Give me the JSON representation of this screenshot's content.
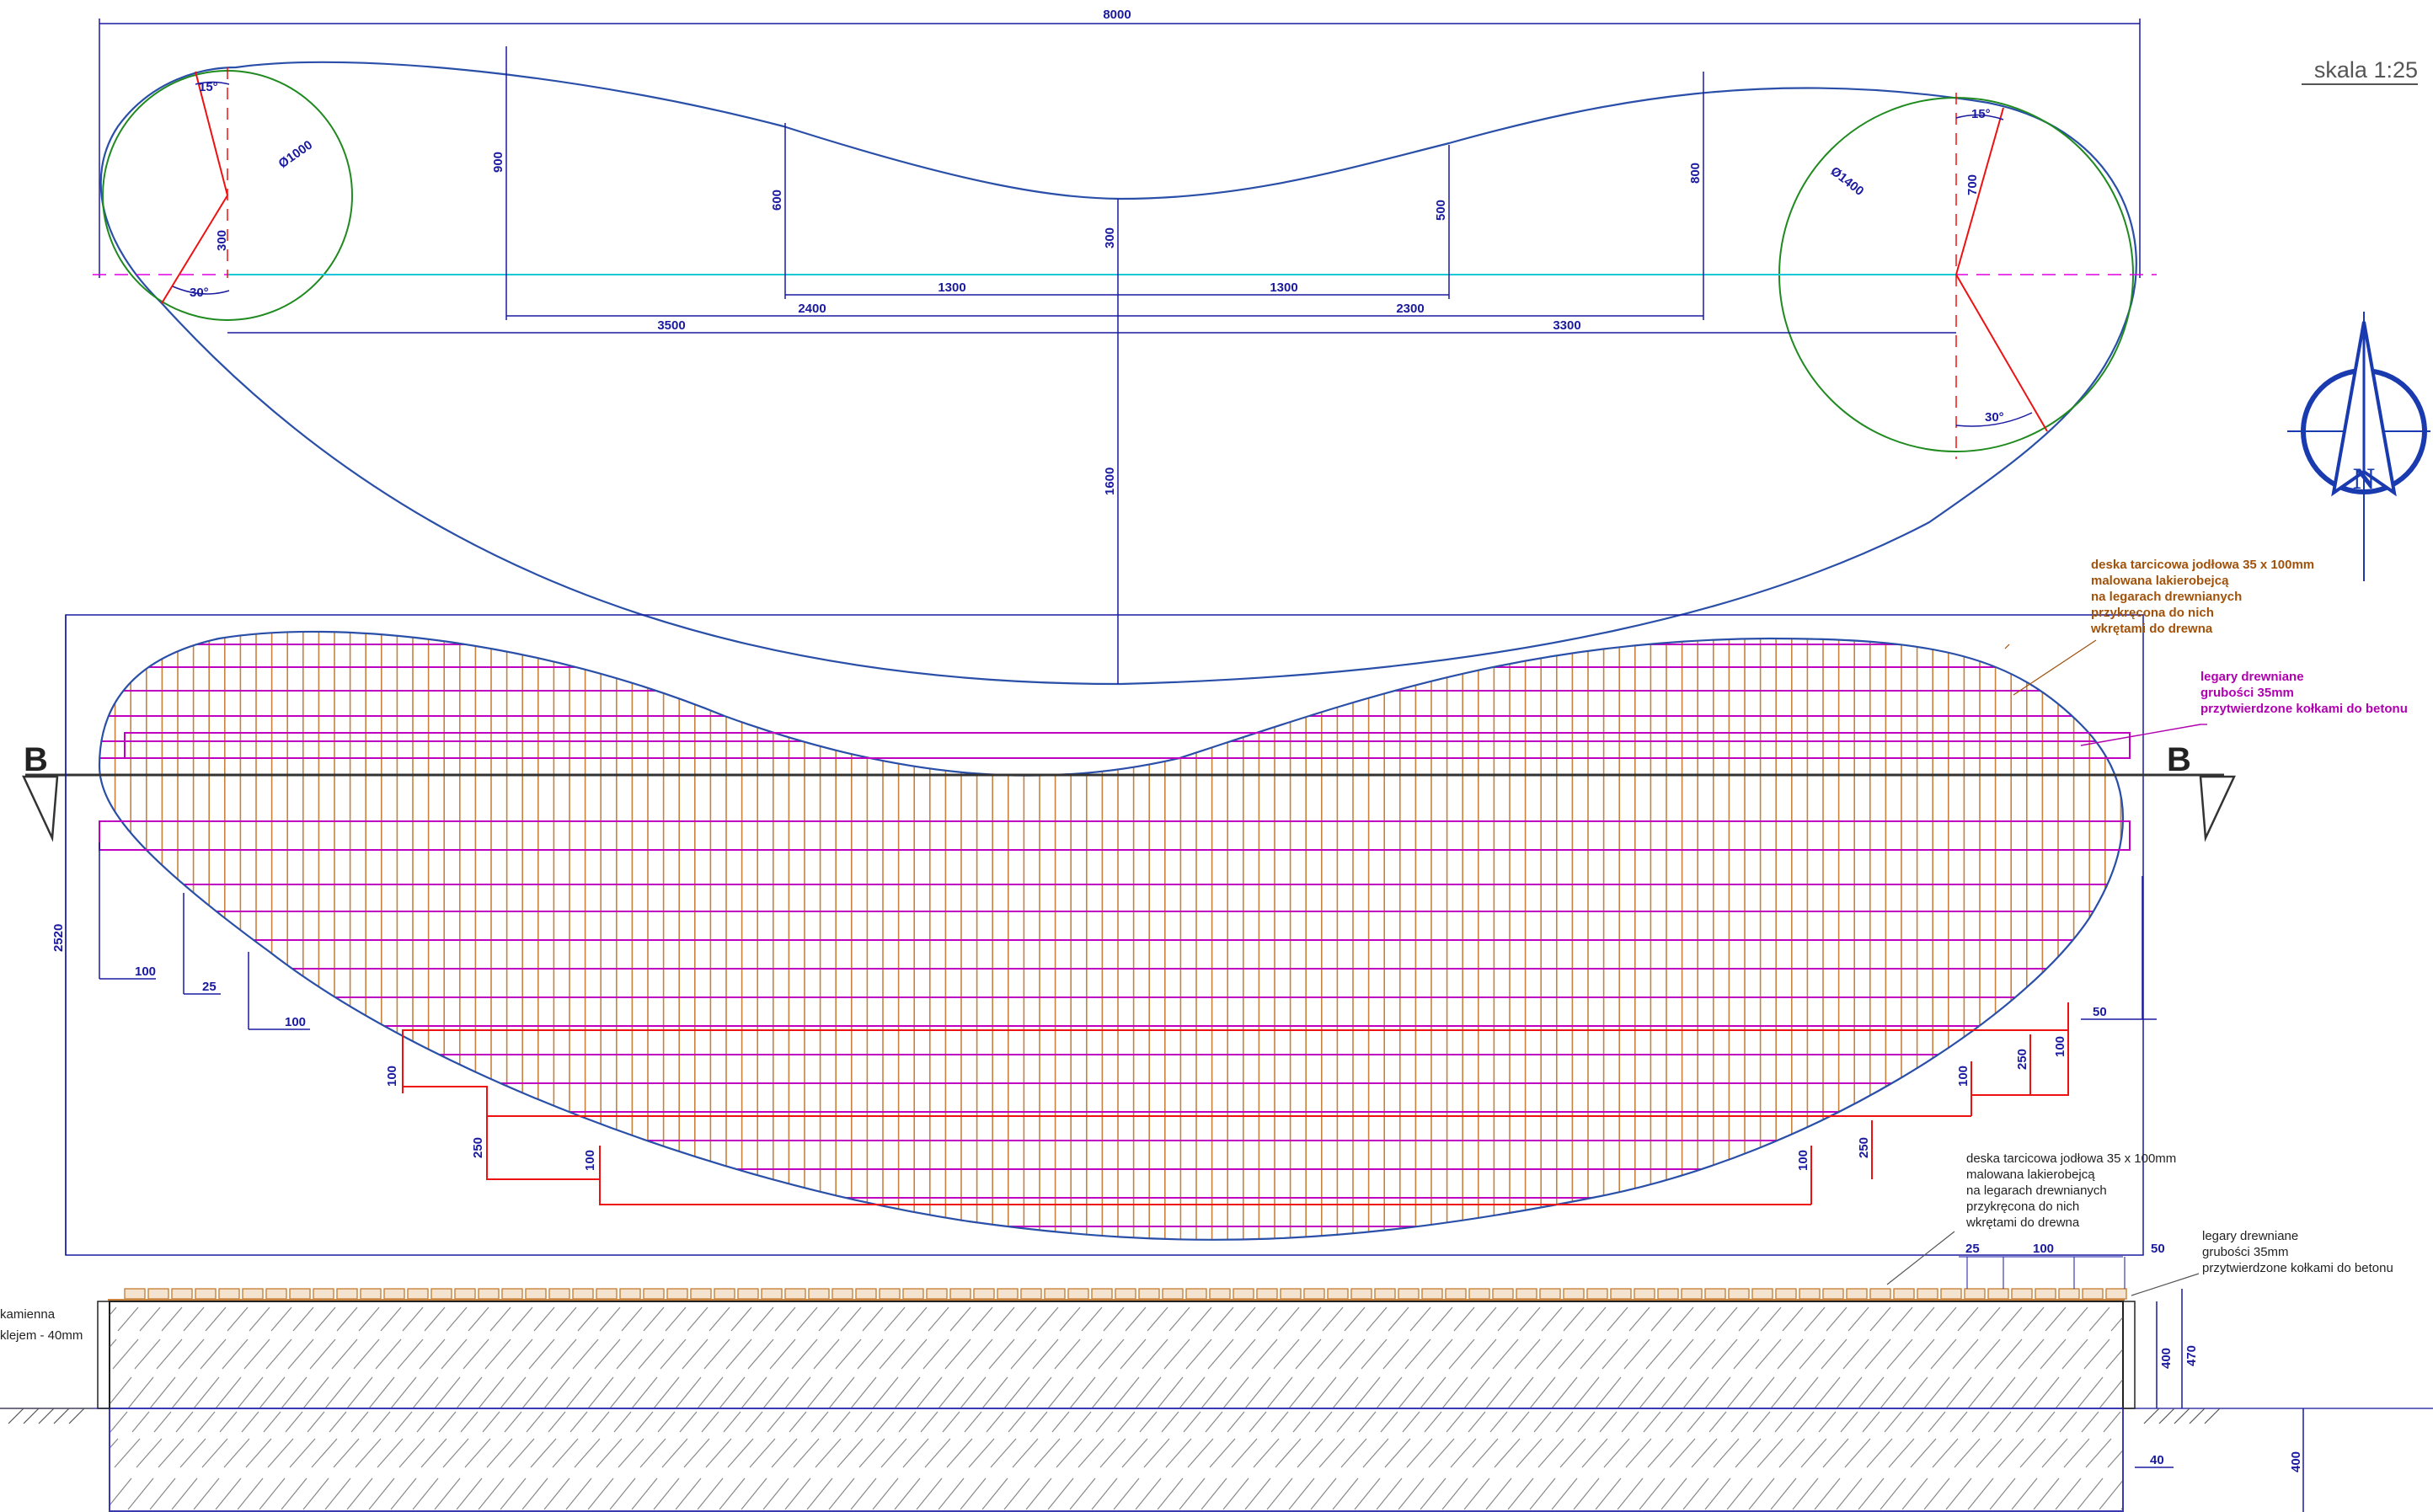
{
  "scale_label": "skala 1:25",
  "north_letter": "N",
  "section_mark": "B",
  "plan_dimensions": {
    "overall_width": "8000",
    "left_circle_diameter": "Ø1000",
    "right_circle_diameter": "Ø1400",
    "left_angle_top": "15°",
    "left_angle_bottom": "30°",
    "right_angle_top": "15°",
    "right_angle_bottom": "30°",
    "left_radius_offset": "300",
    "right_radius_offset": "700",
    "height_900": "900",
    "height_600": "600",
    "height_300": "300",
    "height_500": "500",
    "height_800": "800",
    "depth_1600": "1600",
    "seg_1300_left": "1300",
    "seg_1300_right": "1300",
    "seg_2400": "2400",
    "seg_2300": "2300",
    "seg_3500": "3500",
    "seg_3300": "3300"
  },
  "deck_dimensions": {
    "height_2520": "2520",
    "edge_100_a": "100",
    "edge_25": "25",
    "edge_100_b": "100",
    "edge_50": "50",
    "left_100_a": "100",
    "left_250": "250",
    "left_100_b": "100",
    "right_100_a": "100",
    "right_250_a": "250",
    "right_100_b": "100",
    "right_100_c": "100",
    "right_250_b": "250"
  },
  "section_dimensions": {
    "gap_25": "25",
    "gap_100": "100",
    "gap_50": "50",
    "h_400": "400",
    "h_470": "470",
    "w_40": "40",
    "h_400_base": "400"
  },
  "notes": {
    "board_plan": [
      "deska tarcicowa jodłowa 35 x 100mm",
      "malowana lakierobejcą",
      "na legarach drewnianych",
      "przykręcona do nich",
      "wkrętami do drewna"
    ],
    "joist_plan": [
      "legary drewniane",
      "grubości 35mm",
      "przytwierdzone kołkami do betonu"
    ],
    "board_section": [
      "deska tarcicowa jodłowa 35 x 100mm",
      "malowana lakierobejcą",
      "na legarach drewnianych",
      "przykręcona do nich",
      "wkrętami do drewna"
    ],
    "joist_section": [
      "legary drewniane",
      "grubości 35mm",
      "przytwierdzone kołkami do betonu"
    ],
    "stone_section": [
      "kamienna",
      "klejem - 40mm"
    ]
  },
  "colors": {
    "dimension": "#1a1aa0",
    "outline": "#2a4fa8",
    "circle": "#1f8a1f",
    "angle": "#dd1111",
    "axis": "#e000e0",
    "centerline": "#18c8d8",
    "board": "#c8823c",
    "joist": "#c000c0",
    "offset": "#ee1111"
  }
}
